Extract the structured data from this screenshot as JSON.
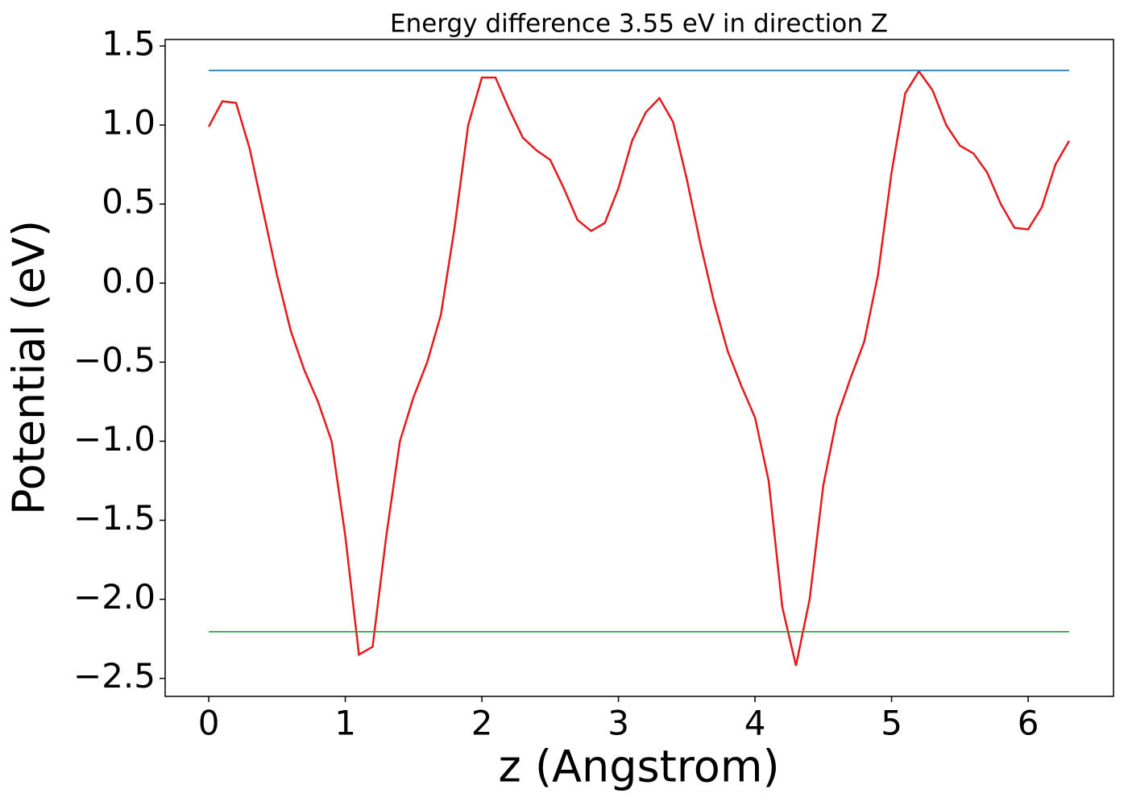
{
  "chart_data": {
    "type": "line",
    "title": "Energy difference 3.55 eV in direction Z",
    "xlabel": "z (Angstrom)",
    "ylabel": "Potential (eV)",
    "xlim": [
      -0.319,
      6.625
    ],
    "ylim": [
      -2.614,
      1.541
    ],
    "xticks": [
      0,
      1,
      2,
      3,
      4,
      5,
      6
    ],
    "yticks": [
      {
        "value": 1.5,
        "label": "1.5"
      },
      {
        "value": 1.0,
        "label": "1.0"
      },
      {
        "value": 0.5,
        "label": "0.5"
      },
      {
        "value": 0,
        "label": "0.0"
      },
      {
        "value": -0.5,
        "label": "−0.5"
      },
      {
        "value": -1.0,
        "label": "−1.0"
      },
      {
        "value": -1.5,
        "label": "−1.5"
      },
      {
        "value": -2.0,
        "label": "−2.0"
      },
      {
        "value": -2.5,
        "label": "−2.5"
      }
    ],
    "grid": false,
    "series": [
      {
        "color": "#e41a1c",
        "x": [
          0,
          0.1,
          0.2,
          0.3,
          0.4,
          0.5,
          0.6,
          0.7,
          0.8,
          0.9,
          1.0,
          1.1,
          1.2,
          1.3,
          1.4,
          1.5,
          1.6,
          1.7,
          1.8,
          1.9,
          2.0,
          2.1,
          2.2,
          2.3,
          2.4,
          2.5,
          2.6,
          2.7,
          2.8,
          2.9,
          3.0,
          3.1,
          3.2,
          3.3,
          3.4,
          3.5,
          3.6,
          3.7,
          3.8,
          3.9,
          4.0,
          4.1,
          4.2,
          4.3,
          4.4,
          4.5,
          4.6,
          4.7,
          4.8,
          4.9,
          5.0,
          5.1,
          5.2,
          5.3,
          5.4,
          5.5,
          5.6,
          5.7,
          5.8,
          5.9,
          6.0,
          6.1,
          6.2,
          6.3
        ],
        "values": [
          0.99,
          1.15,
          1.14,
          0.85,
          0.45,
          0.05,
          -0.3,
          -0.55,
          -0.75,
          -1.0,
          -1.6,
          -2.35,
          -2.3,
          -1.6,
          -1.0,
          -0.72,
          -0.5,
          -0.2,
          0.35,
          1.0,
          1.3,
          1.3,
          1.1,
          0.92,
          0.84,
          0.78,
          0.6,
          0.4,
          0.33,
          0.38,
          0.6,
          0.9,
          1.08,
          1.17,
          1.02,
          0.66,
          0.25,
          -0.12,
          -0.43,
          -0.65,
          -0.85,
          -1.25,
          -2.05,
          -2.42,
          -2.0,
          -1.28,
          -0.85,
          -0.6,
          -0.37,
          0.05,
          0.7,
          1.2,
          1.34,
          1.22,
          1.0,
          0.87,
          0.82,
          0.7,
          0.5,
          0.35,
          0.34,
          0.48,
          0.75,
          0.9
        ]
      },
      {
        "color": "#1f77b4",
        "x": [
          0,
          6.3
        ],
        "values": [
          1.345,
          1.345
        ]
      },
      {
        "color": "#2ca02c",
        "x": [
          0,
          6.3
        ],
        "values": [
          -2.205,
          -2.205
        ]
      }
    ]
  }
}
